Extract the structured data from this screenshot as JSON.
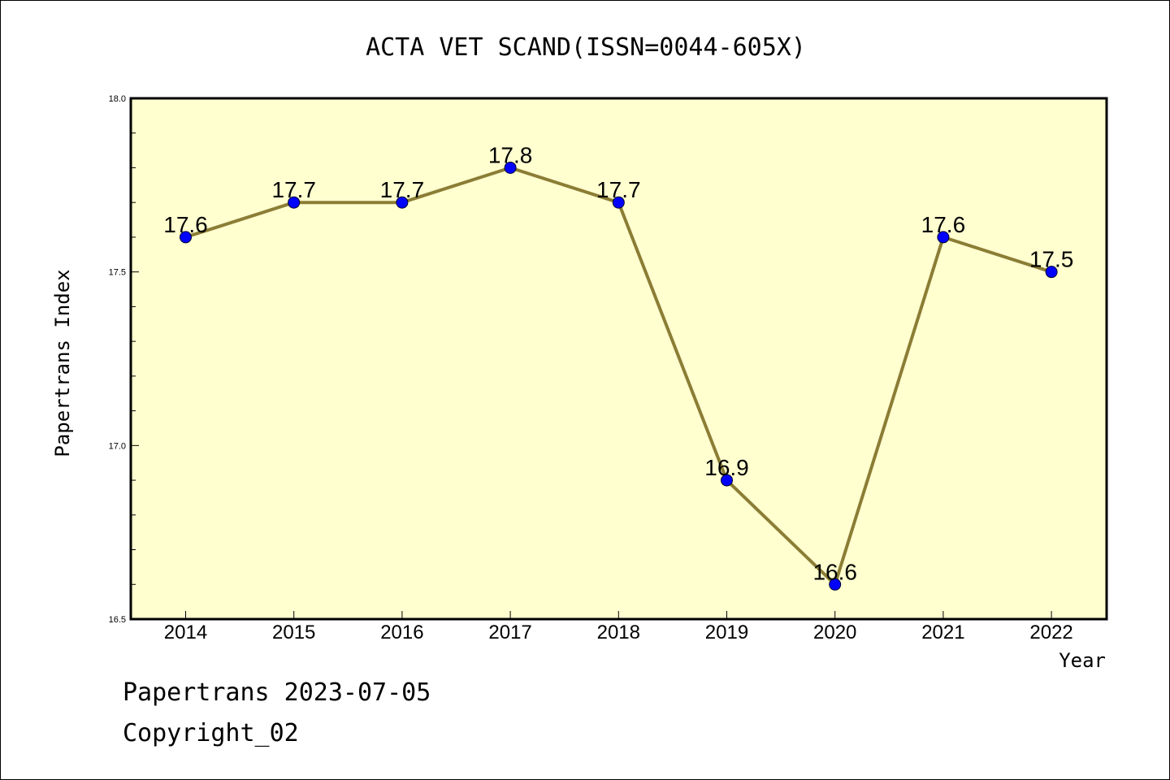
{
  "chart_data": {
    "type": "line",
    "title": "ACTA VET SCAND(ISSN=0044-605X)",
    "xlabel": "Year",
    "ylabel": "Papertrans Index",
    "categories": [
      "2014",
      "2015",
      "2016",
      "2017",
      "2018",
      "2019",
      "2020",
      "2021",
      "2022"
    ],
    "series": [
      {
        "values": [
          17.6,
          17.7,
          17.7,
          17.8,
          17.7,
          16.9,
          16.6,
          17.6,
          17.5
        ]
      }
    ],
    "data_labels": [
      "17.6",
      "17.7",
      "17.7",
      "17.8",
      "17.7",
      "16.9",
      "16.6",
      "17.6",
      "17.5"
    ],
    "ylim": [
      16.5,
      18.0
    ],
    "yticks": [
      "16.5",
      "17.0",
      "17.5",
      "18.0"
    ],
    "grid": false,
    "colors": {
      "line": "#8B7D35",
      "marker": "#0000FF",
      "plot_background": "#FFFFD0"
    }
  },
  "footer": {
    "line1": "Papertrans 2023-07-05",
    "line2": "Copyright_02"
  }
}
